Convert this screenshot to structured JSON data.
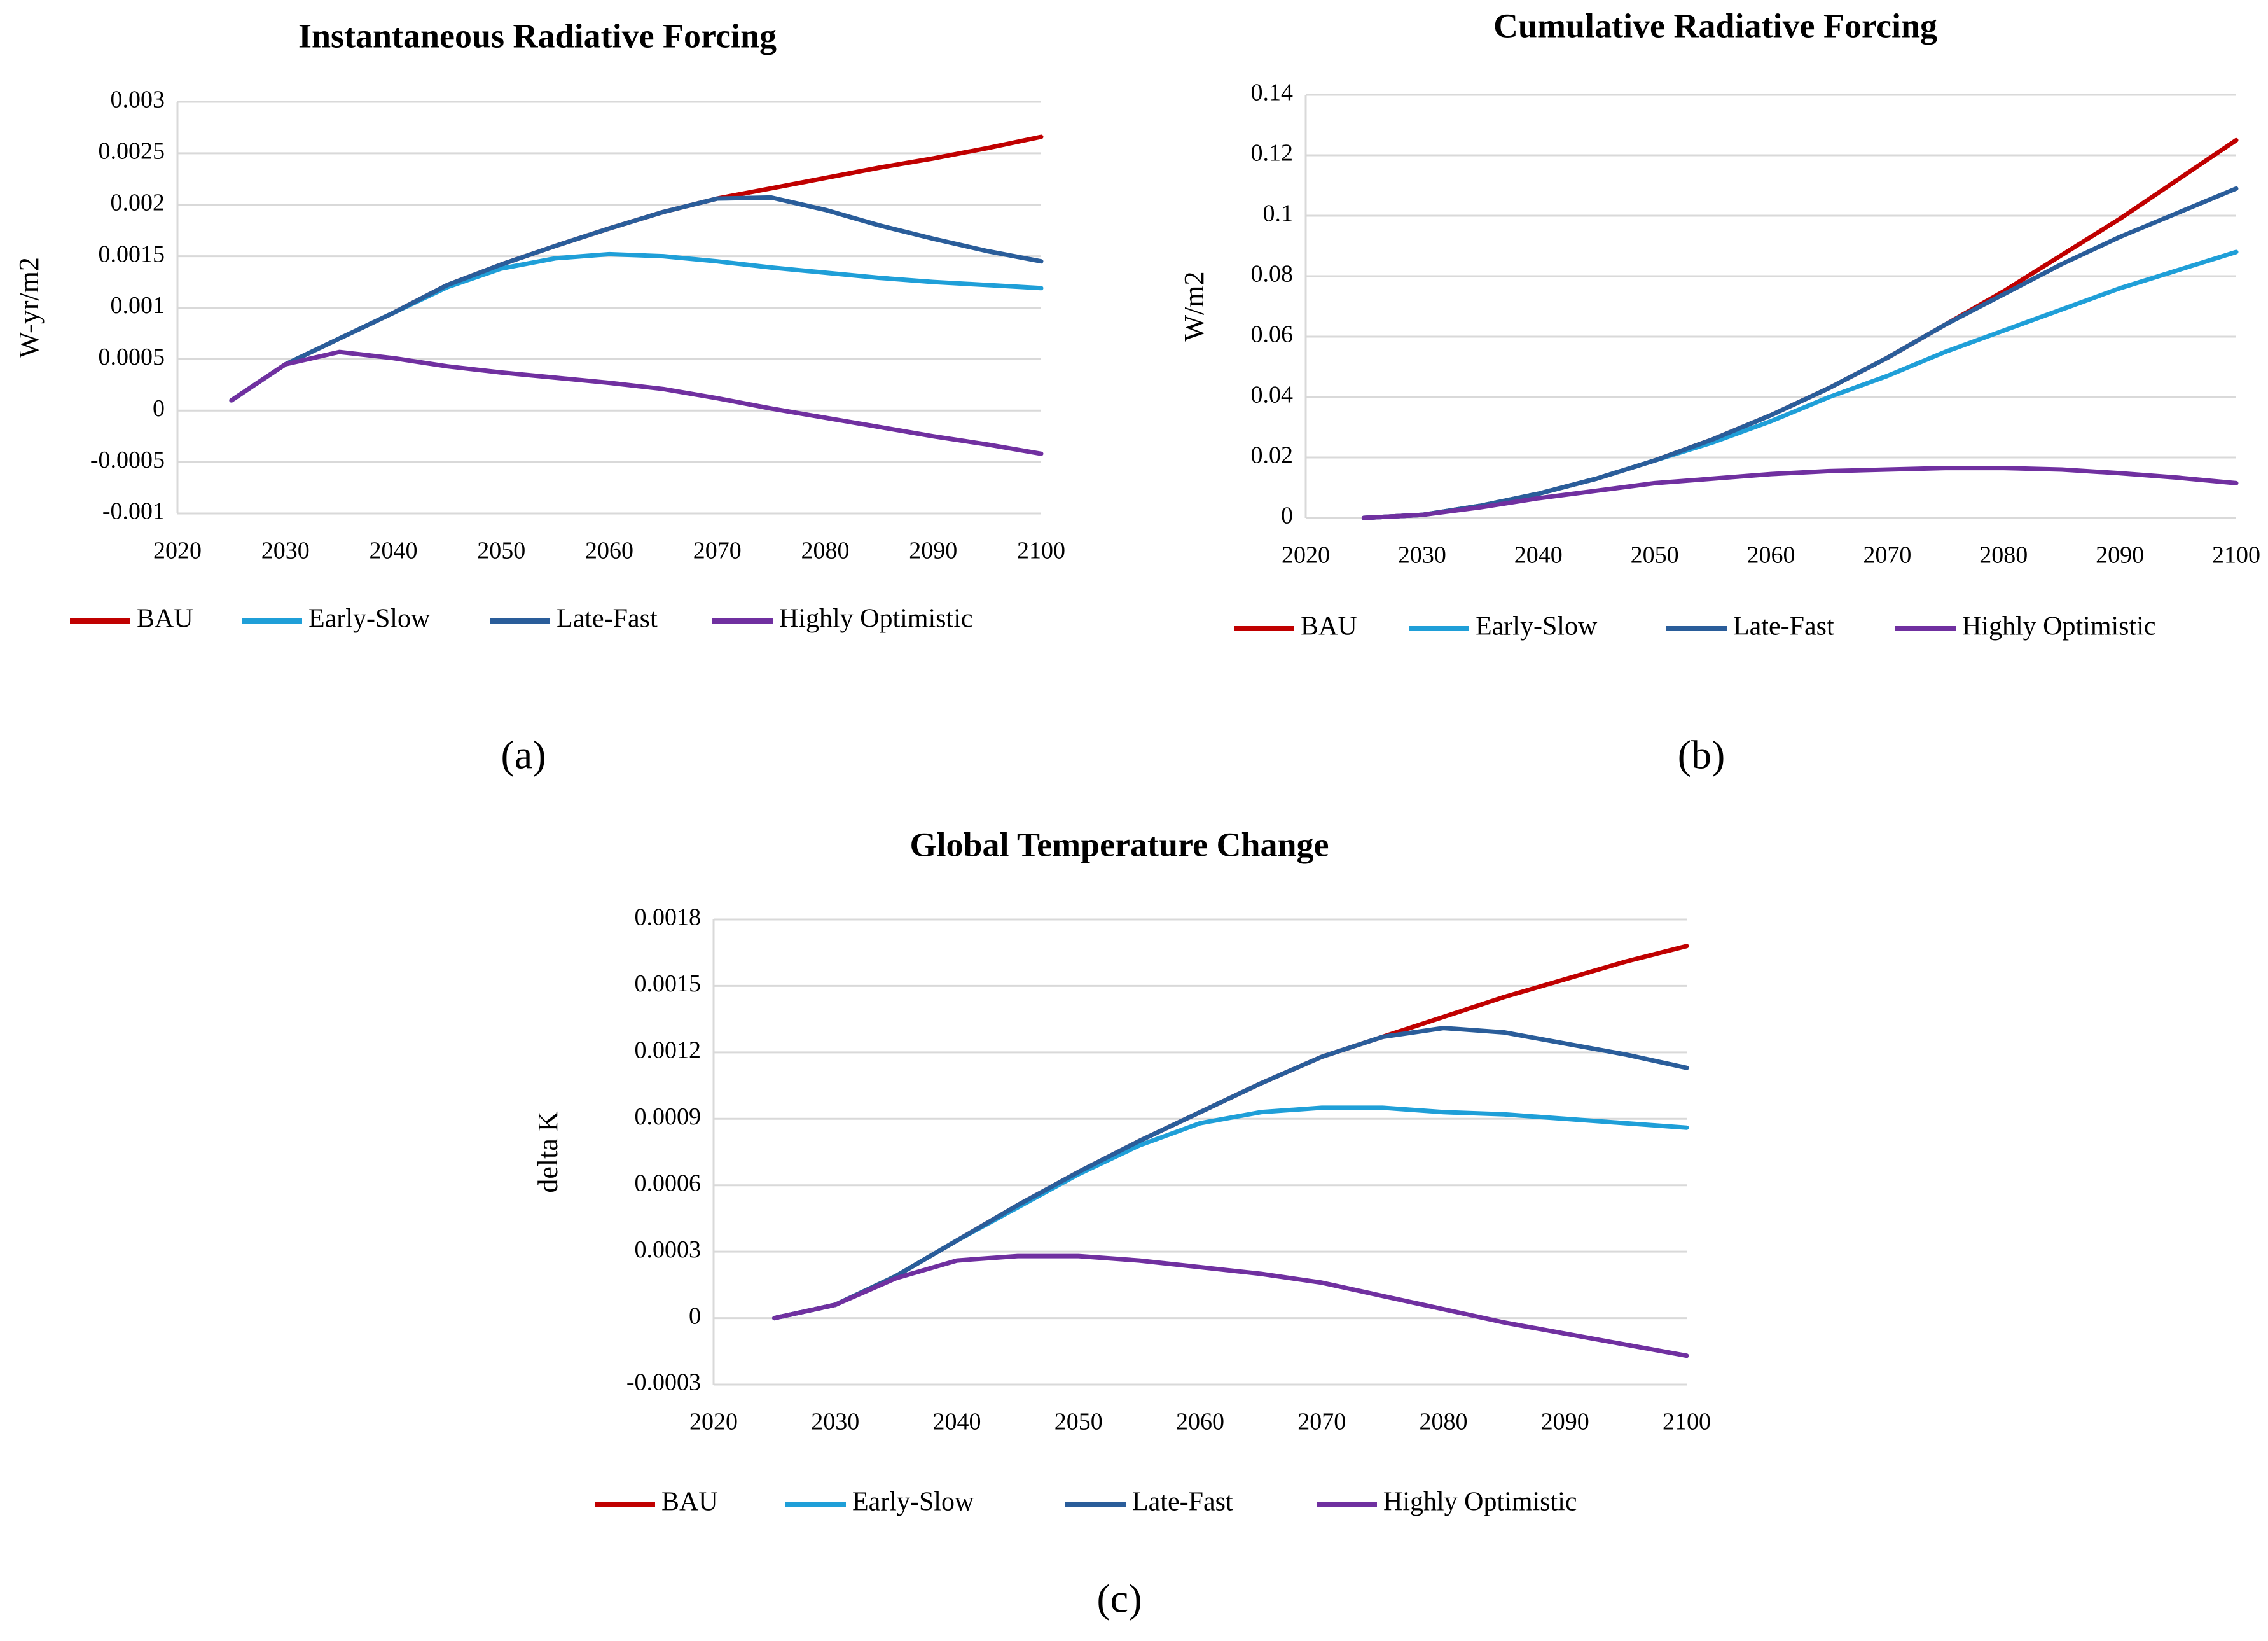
{
  "chart_data": [
    {
      "type": "line",
      "title": "Instantaneous Radiative Forcing",
      "y_label": "W-yr/m2",
      "caption": "(a)",
      "x": [
        2025,
        2030,
        2035,
        2040,
        2045,
        2050,
        2055,
        2060,
        2065,
        2070,
        2075,
        2080,
        2085,
        2090,
        2095,
        2100
      ],
      "xlim": [
        2020,
        2100
      ],
      "xticks": [
        2020,
        2030,
        2040,
        2050,
        2060,
        2070,
        2080,
        2090,
        2100
      ],
      "ylim": [
        -0.001,
        0.003
      ],
      "yticks": [
        -0.001,
        -0.0005,
        0,
        0.0005,
        0.001,
        0.0015,
        0.002,
        0.0025,
        0.003
      ],
      "grid": true,
      "series": [
        {
          "name": "BAU",
          "color": "#c00000",
          "values": [
            0.0001,
            0.00045,
            0.0007,
            0.00095,
            0.00122,
            0.00142,
            0.0016,
            0.00177,
            0.00193,
            0.00206,
            0.00216,
            0.00226,
            0.00236,
            0.00245,
            0.00255,
            0.00266
          ]
        },
        {
          "name": "Early-Slow",
          "color": "#1f9fd8",
          "values": [
            0.0001,
            0.00045,
            0.0007,
            0.00095,
            0.0012,
            0.00138,
            0.00148,
            0.00152,
            0.0015,
            0.00145,
            0.00139,
            0.00134,
            0.00129,
            0.00125,
            0.00122,
            0.00119
          ]
        },
        {
          "name": "Late-Fast",
          "color": "#2a5d9a",
          "values": [
            0.0001,
            0.00045,
            0.0007,
            0.00095,
            0.00122,
            0.00142,
            0.0016,
            0.00177,
            0.00193,
            0.00206,
            0.00207,
            0.00195,
            0.0018,
            0.00167,
            0.00155,
            0.00145
          ]
        },
        {
          "name": "Highly Optimistic",
          "color": "#7030a0",
          "values": [
            0.0001,
            0.00045,
            0.00057,
            0.00051,
            0.00043,
            0.00037,
            0.00032,
            0.00027,
            0.00021,
            0.00012,
            2e-05,
            -7e-05,
            -0.00016,
            -0.00025,
            -0.00033,
            -0.00042
          ]
        }
      ]
    },
    {
      "type": "line",
      "title": "Cumulative Radiative Forcing",
      "y_label": "W/m2",
      "caption": "(b)",
      "x": [
        2025,
        2030,
        2035,
        2040,
        2045,
        2050,
        2055,
        2060,
        2065,
        2070,
        2075,
        2080,
        2085,
        2090,
        2095,
        2100
      ],
      "xlim": [
        2020,
        2100
      ],
      "xticks": [
        2020,
        2030,
        2040,
        2050,
        2060,
        2070,
        2080,
        2090,
        2100
      ],
      "ylim": [
        0,
        0.14
      ],
      "yticks": [
        0,
        0.02,
        0.04,
        0.06,
        0.08,
        0.1,
        0.12,
        0.14
      ],
      "grid": true,
      "series": [
        {
          "name": "BAU",
          "color": "#c00000",
          "values": [
            0,
            0.001,
            0.004,
            0.008,
            0.013,
            0.019,
            0.026,
            0.034,
            0.043,
            0.053,
            0.064,
            0.075,
            0.087,
            0.099,
            0.112,
            0.125
          ]
        },
        {
          "name": "Early-Slow",
          "color": "#1f9fd8",
          "values": [
            0,
            0.001,
            0.004,
            0.008,
            0.013,
            0.019,
            0.025,
            0.032,
            0.04,
            0.047,
            0.055,
            0.062,
            0.069,
            0.076,
            0.082,
            0.088
          ]
        },
        {
          "name": "Late-Fast",
          "color": "#2a5d9a",
          "values": [
            0,
            0.001,
            0.004,
            0.008,
            0.013,
            0.019,
            0.026,
            0.034,
            0.043,
            0.053,
            0.064,
            0.074,
            0.084,
            0.093,
            0.101,
            0.109
          ]
        },
        {
          "name": "Highly Optimistic",
          "color": "#7030a0",
          "values": [
            0,
            0.001,
            0.0035,
            0.0065,
            0.009,
            0.0115,
            0.013,
            0.0145,
            0.0155,
            0.016,
            0.0165,
            0.0165,
            0.016,
            0.0148,
            0.0133,
            0.0115
          ]
        }
      ]
    },
    {
      "type": "line",
      "title": "Global Temperature Change",
      "y_label": "delta K",
      "caption": "(c)",
      "x": [
        2025,
        2030,
        2035,
        2040,
        2045,
        2050,
        2055,
        2060,
        2065,
        2070,
        2075,
        2080,
        2085,
        2090,
        2095,
        2100
      ],
      "xlim": [
        2020,
        2100
      ],
      "xticks": [
        2020,
        2030,
        2040,
        2050,
        2060,
        2070,
        2080,
        2090,
        2100
      ],
      "ylim": [
        -0.0003,
        0.0018
      ],
      "yticks": [
        -0.0003,
        0,
        0.0003,
        0.0006,
        0.0009,
        0.0012,
        0.0015,
        0.0018
      ],
      "grid": true,
      "series": [
        {
          "name": "BAU",
          "color": "#c00000",
          "values": [
            0,
            6e-05,
            0.00019,
            0.00035,
            0.00051,
            0.00066,
            0.0008,
            0.00093,
            0.00106,
            0.00118,
            0.00127,
            0.00136,
            0.00145,
            0.00153,
            0.00161,
            0.00168
          ]
        },
        {
          "name": "Early-Slow",
          "color": "#1f9fd8",
          "values": [
            0,
            6e-05,
            0.00019,
            0.00035,
            0.0005,
            0.00065,
            0.00078,
            0.00088,
            0.00093,
            0.00095,
            0.00095,
            0.00093,
            0.00092,
            0.0009,
            0.00088,
            0.00086
          ]
        },
        {
          "name": "Late-Fast",
          "color": "#2a5d9a",
          "values": [
            0,
            6e-05,
            0.00019,
            0.00035,
            0.00051,
            0.00066,
            0.0008,
            0.00093,
            0.00106,
            0.00118,
            0.00127,
            0.00131,
            0.00129,
            0.00124,
            0.00119,
            0.00113
          ]
        },
        {
          "name": "Highly Optimistic",
          "color": "#7030a0",
          "values": [
            0,
            6e-05,
            0.00018,
            0.00026,
            0.00028,
            0.00028,
            0.00026,
            0.00023,
            0.0002,
            0.00016,
            0.0001,
            4e-05,
            -2e-05,
            -7e-05,
            -0.00012,
            -0.00017
          ]
        }
      ]
    }
  ]
}
